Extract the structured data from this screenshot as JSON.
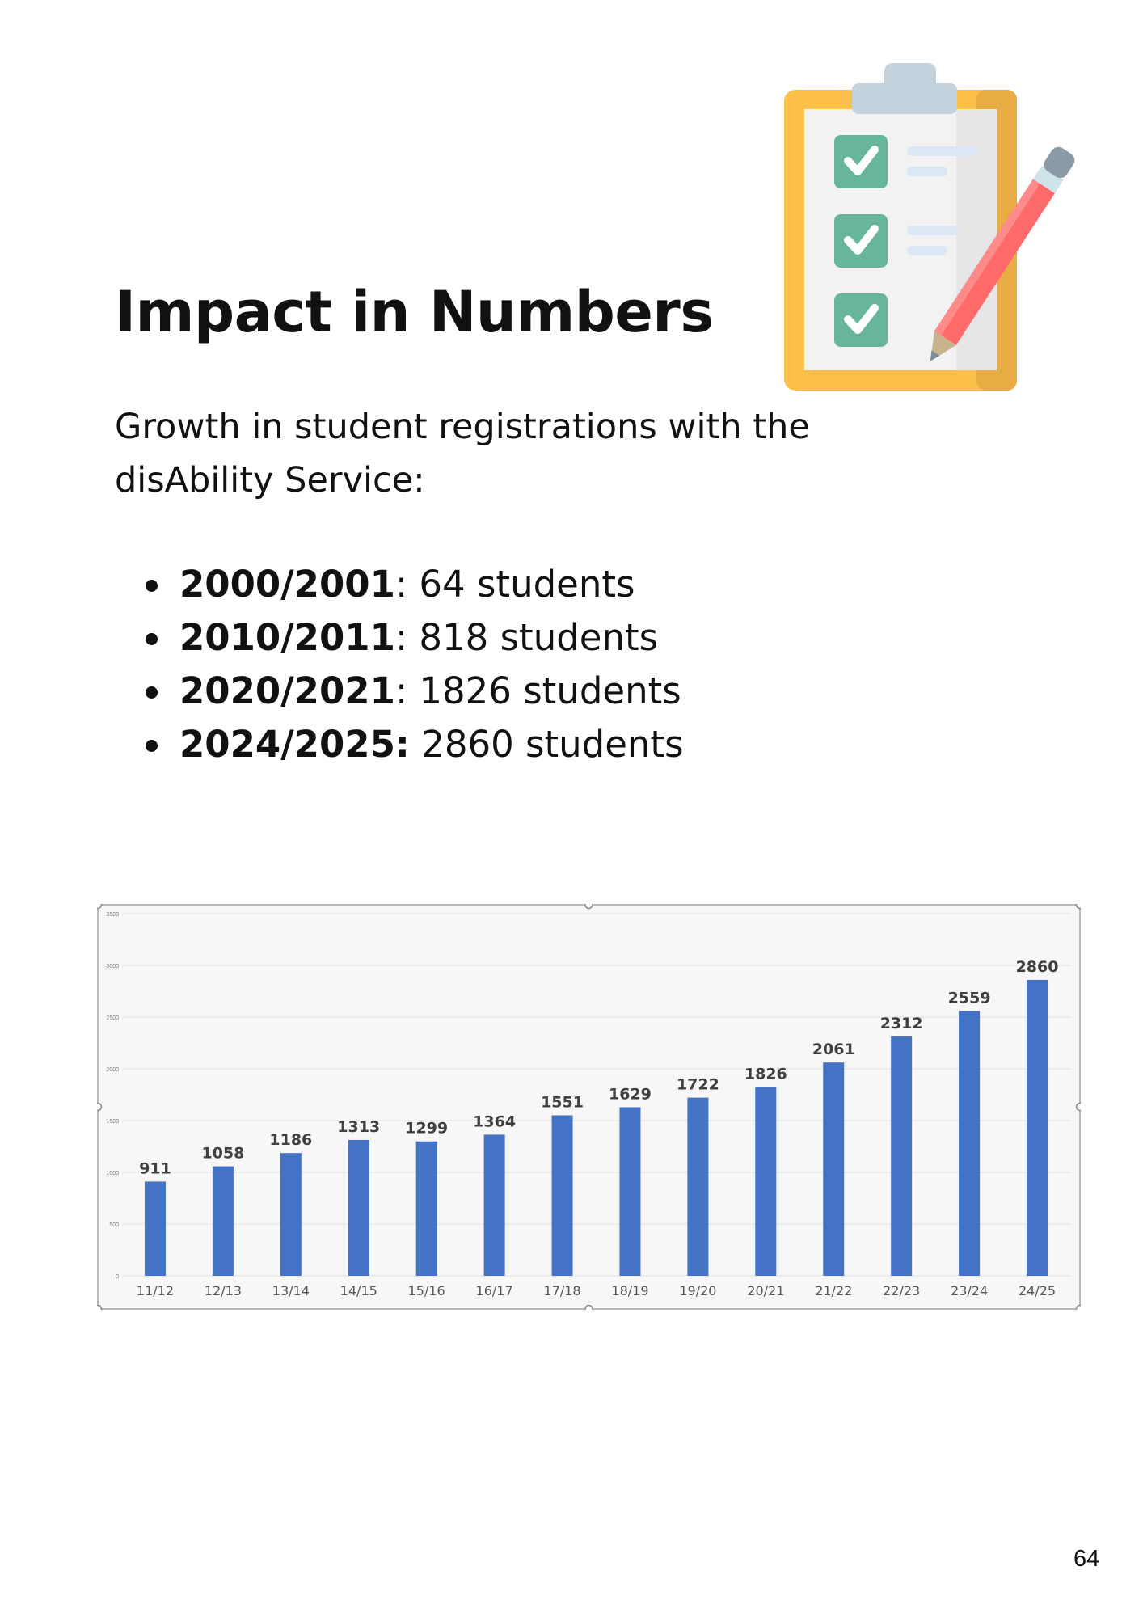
{
  "heading": "Impact in Numbers",
  "intro": "Growth in student registrations with the disAbility Service:",
  "stats": [
    {
      "year": "2000/2001",
      "sep": ":",
      "rest": " 64 students"
    },
    {
      "year": "2010/2011",
      "sep": ":",
      "rest": " 818 students"
    },
    {
      "year": "2020/2021",
      "sep": ":",
      "rest": " 1826 students"
    },
    {
      "year": "2024/2025:",
      "sep": "",
      "rest": " 2860 students"
    }
  ],
  "icon": "clipboard-checklist-pencil-icon",
  "colors": {
    "bar": "#4472c4",
    "plot_bg": "#f7f7f7",
    "check_box": "#66b59c",
    "clipboard_frame": "#fcbf49",
    "pencil": "#ff6b6b"
  },
  "chart_data": {
    "type": "bar",
    "categories": [
      "11/12",
      "12/13",
      "13/14",
      "14/15",
      "15/16",
      "16/17",
      "17/18",
      "18/19",
      "19/20",
      "20/21",
      "21/22",
      "22/23",
      "23/24",
      "24/25"
    ],
    "values": [
      911,
      1058,
      1186,
      1313,
      1299,
      1364,
      1551,
      1629,
      1722,
      1826,
      2061,
      2312,
      2559,
      2860
    ],
    "ylim": [
      0,
      3500
    ],
    "yticks": [
      0,
      500,
      1000,
      1500,
      2000,
      2500,
      3000,
      3500
    ],
    "grid": true,
    "data_labels": true,
    "title": "",
    "xlabel": "",
    "ylabel": ""
  },
  "page_number": "64"
}
